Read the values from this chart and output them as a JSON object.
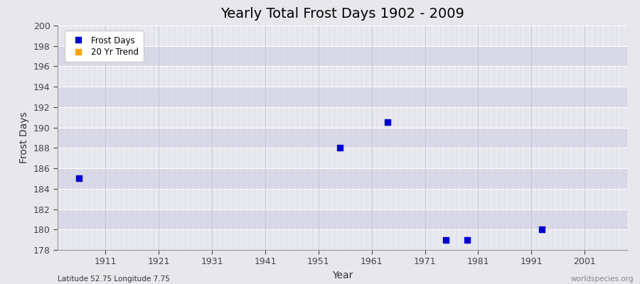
{
  "title": "Yearly Total Frost Days 1902 - 2009",
  "xlabel": "Year",
  "ylabel": "Frost Days",
  "xlim": [
    1902,
    2009
  ],
  "ylim": [
    178,
    200
  ],
  "yticks": [
    178,
    180,
    182,
    184,
    186,
    188,
    190,
    192,
    194,
    196,
    198,
    200
  ],
  "xticks": [
    1911,
    1921,
    1931,
    1941,
    1951,
    1961,
    1971,
    1981,
    1991,
    2001
  ],
  "frost_days_x": [
    1906,
    1955,
    1964,
    1975,
    1979,
    1993
  ],
  "frost_days_y": [
    185,
    188,
    190.5,
    179,
    179,
    180
  ],
  "point_color": "#0000cc",
  "point_size": 6,
  "trend_color": "#ffa500",
  "fig_bg_color": "#e8e8ec",
  "plot_bg_color": "#e2e2ea",
  "grid_color_major": "#ffffff",
  "grid_color_minor": "#d8d8e4",
  "title_fontsize": 14,
  "axis_label_fontsize": 10,
  "tick_fontsize": 9,
  "legend_label_frost": "Frost Days",
  "legend_label_trend": "20 Yr Trend",
  "bottom_left_text": "Latitude 52.75 Longitude 7.75",
  "bottom_right_text": "worldspecies.org"
}
